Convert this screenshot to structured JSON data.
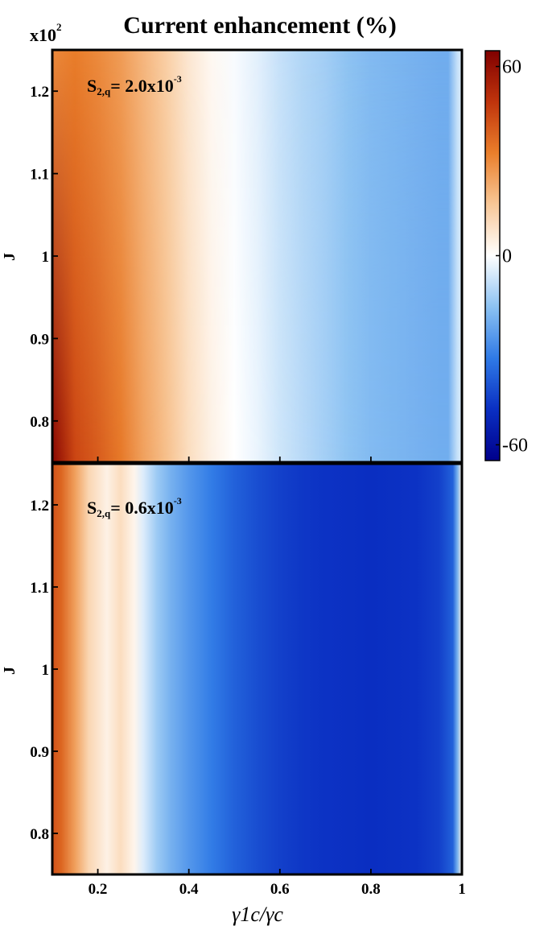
{
  "chart_data": [
    {
      "type": "heatmap",
      "title": "Current enhancement (%)",
      "scale_label": {
        "base": "x10",
        "exp": "2"
      },
      "annotation": {
        "main": "S",
        "sub": "2,q",
        "eq": "= ",
        "mant": "2.0x10",
        "exp": "-3"
      },
      "xlim": [
        0.1,
        1.0
      ],
      "ylim": [
        75,
        125
      ],
      "ylabel": "J",
      "xlabel": "",
      "yticks": [
        {
          "v": 80,
          "label": "0.8"
        },
        {
          "v": 90,
          "label": "0.9"
        },
        {
          "v": 100,
          "label": "1"
        },
        {
          "v": 110,
          "label": "1.1"
        },
        {
          "v": 120,
          "label": "1.2"
        }
      ],
      "xticks": [
        0.2,
        0.4,
        0.6,
        0.8
      ],
      "value_profile_left_edge": [
        [
          0.1,
          63
        ],
        [
          0.15,
          45
        ],
        [
          0.2,
          40
        ],
        [
          0.25,
          34
        ],
        [
          0.3,
          25
        ],
        [
          0.35,
          18
        ],
        [
          0.4,
          10
        ],
        [
          0.45,
          4
        ],
        [
          0.5,
          0
        ],
        [
          0.55,
          -3
        ],
        [
          0.6,
          -7
        ],
        [
          0.65,
          -10
        ],
        [
          0.7,
          -13
        ],
        [
          0.75,
          -16
        ],
        [
          0.8,
          -18
        ],
        [
          0.85,
          -19
        ],
        [
          0.9,
          -20
        ],
        [
          0.95,
          -21
        ],
        [
          0.97,
          -21
        ],
        [
          0.99,
          -8
        ],
        [
          1.0,
          -5
        ]
      ],
      "value_profile_right_edge": [
        [
          0.1,
          30
        ],
        [
          0.15,
          33
        ],
        [
          0.2,
          30
        ],
        [
          0.25,
          26
        ],
        [
          0.3,
          20
        ],
        [
          0.35,
          14
        ],
        [
          0.4,
          7
        ],
        [
          0.45,
          2
        ],
        [
          0.5,
          -1
        ],
        [
          0.55,
          -4
        ],
        [
          0.6,
          -8
        ],
        [
          0.65,
          -11
        ],
        [
          0.7,
          -13
        ],
        [
          0.75,
          -16
        ],
        [
          0.8,
          -18
        ],
        [
          0.85,
          -19
        ],
        [
          0.9,
          -20
        ],
        [
          0.95,
          -21
        ],
        [
          0.97,
          -21
        ],
        [
          0.99,
          -8
        ],
        [
          1.0,
          -5
        ]
      ]
    },
    {
      "type": "heatmap",
      "annotation": {
        "main": "S",
        "sub": "2,q",
        "eq": "= ",
        "mant": "0.6x10",
        "exp": "-3"
      },
      "xlim": [
        0.1,
        1.0
      ],
      "ylim": [
        75,
        125
      ],
      "ylabel": "J",
      "xlabel": "γ1c/γc",
      "yticks": [
        {
          "v": 80,
          "label": "0.8"
        },
        {
          "v": 90,
          "label": "0.9"
        },
        {
          "v": 100,
          "label": "1"
        },
        {
          "v": 110,
          "label": "1.1"
        },
        {
          "v": 120,
          "label": "1.2"
        }
      ],
      "xticks": [
        {
          "v": 0.2,
          "label": "0.2"
        },
        {
          "v": 0.4,
          "label": "0.4"
        },
        {
          "v": 0.6,
          "label": "0.6"
        },
        {
          "v": 0.8,
          "label": "0.8"
        },
        {
          "v": 1.0,
          "label": "1"
        }
      ],
      "value_profile": [
        [
          0.1,
          42
        ],
        [
          0.12,
          38
        ],
        [
          0.15,
          25
        ],
        [
          0.18,
          12
        ],
        [
          0.2,
          8
        ],
        [
          0.22,
          4
        ],
        [
          0.25,
          10
        ],
        [
          0.28,
          3
        ],
        [
          0.3,
          -5
        ],
        [
          0.33,
          -14
        ],
        [
          0.36,
          -20
        ],
        [
          0.4,
          -26
        ],
        [
          0.45,
          -32
        ],
        [
          0.5,
          -38
        ],
        [
          0.55,
          -42
        ],
        [
          0.6,
          -45
        ],
        [
          0.65,
          -47
        ],
        [
          0.7,
          -48
        ],
        [
          0.8,
          -49
        ],
        [
          0.9,
          -48
        ],
        [
          0.95,
          -45
        ],
        [
          0.98,
          -38
        ],
        [
          0.99,
          -20
        ],
        [
          1.0,
          5
        ]
      ]
    }
  ],
  "colorbar": {
    "range": [
      -65,
      65
    ],
    "ticks": [
      {
        "v": 60,
        "label": "60"
      },
      {
        "v": 0,
        "label": "0"
      },
      {
        "v": -60,
        "label": "-60"
      }
    ],
    "colors": [
      "#00008b",
      "#0a2fc2",
      "#2f7ae6",
      "#8cc2f2",
      "#ffffff",
      "#f8c797",
      "#ea7f2b",
      "#c0340c",
      "#800000"
    ]
  }
}
